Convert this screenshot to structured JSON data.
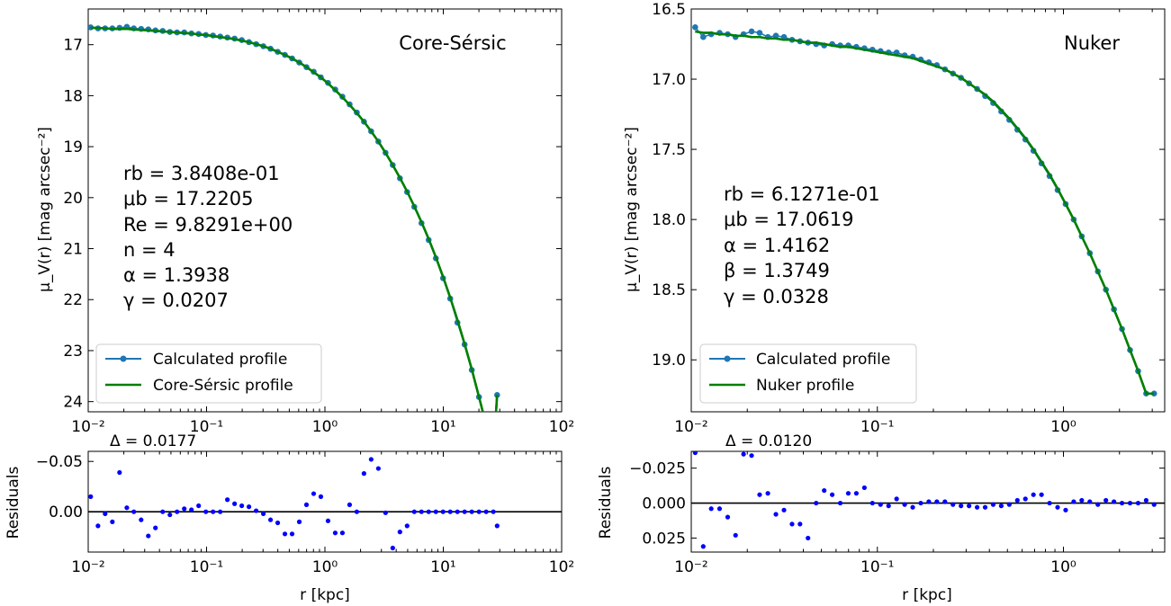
{
  "colors": {
    "calc": "#1f77b4",
    "fit": "#008000",
    "resid": "#0000ff",
    "zero": "#000000"
  },
  "chart_data": [
    {
      "type": "line",
      "title": "Core-Sérsic",
      "ylabel": "μ_V(r) [mag arcsec⁻²]",
      "xlabel": "",
      "xscale": "log",
      "xlim": [
        0.01,
        100
      ],
      "ylim": [
        24.2,
        16.3
      ],
      "y_inverted": true,
      "xticks": [
        "10⁻²",
        "10⁻¹",
        "10⁰",
        "10¹",
        "10²"
      ],
      "yticks": [
        "17",
        "18",
        "19",
        "20",
        "21",
        "22",
        "23",
        "24"
      ],
      "annotations": [
        "rb = 3.8408e-01",
        "μb = 17.2205",
        "Re = 9.8291e+00",
        "n = 4",
        "α = 1.3938",
        "γ = 0.0207"
      ],
      "legend": {
        "position": "lower-left",
        "entries": [
          "Calculated profile",
          "Core-Sérsic profile"
        ]
      },
      "series": [
        {
          "name": "Calculated profile",
          "x": [
            0.0105,
            0.0121,
            0.0139,
            0.016,
            0.0184,
            0.0212,
            0.0243,
            0.028,
            0.0322,
            0.037,
            0.0426,
            0.049,
            0.0563,
            0.0648,
            0.0745,
            0.0857,
            0.0986,
            0.1134,
            0.1304,
            0.1499,
            0.1725,
            0.1983,
            0.2281,
            0.2624,
            0.3018,
            0.3471,
            0.3992,
            0.4591,
            0.528,
            0.6073,
            0.6984,
            0.8032,
            0.9238,
            1.0624,
            1.2219,
            1.4053,
            1.6162,
            1.8587,
            2.1377,
            2.4585,
            2.8275,
            3.2519,
            3.74,
            4.3013,
            4.9469,
            5.6894,
            6.5433,
            7.5254,
            8.655,
            9.9541,
            11.448,
            13.166,
            15.142,
            17.415,
            20.029,
            23.035,
            26.493,
            28.5
          ],
          "y": [
            16.66,
            16.68,
            16.68,
            16.68,
            16.67,
            16.65,
            16.68,
            16.69,
            16.7,
            16.72,
            16.73,
            16.75,
            16.76,
            16.76,
            16.78,
            16.79,
            16.81,
            16.82,
            16.84,
            16.86,
            16.88,
            16.91,
            16.95,
            16.99,
            17.03,
            17.08,
            17.14,
            17.2,
            17.27,
            17.35,
            17.44,
            17.53,
            17.64,
            17.75,
            17.88,
            18.02,
            18.17,
            18.33,
            18.51,
            18.7,
            18.9,
            19.12,
            19.36,
            19.62,
            19.89,
            20.18,
            20.5,
            20.83,
            21.19,
            21.58,
            21.98,
            22.45,
            22.88,
            23.38,
            23.91,
            24.45,
            25.01,
            23.87
          ]
        },
        {
          "name": "Core-Sérsic profile",
          "x": [
            0.0105,
            0.0121,
            0.0139,
            0.016,
            0.0184,
            0.0212,
            0.0243,
            0.028,
            0.0322,
            0.037,
            0.0426,
            0.049,
            0.0563,
            0.0648,
            0.0745,
            0.0857,
            0.0986,
            0.1134,
            0.1304,
            0.1499,
            0.1725,
            0.1983,
            0.2281,
            0.2624,
            0.3018,
            0.3471,
            0.3992,
            0.4591,
            0.528,
            0.6073,
            0.6984,
            0.8032,
            0.9238,
            1.0624,
            1.2219,
            1.4053,
            1.6162,
            1.8587,
            2.1377,
            2.4585,
            2.8275,
            3.2519,
            3.74,
            4.3013,
            4.9469,
            5.6894,
            6.5433,
            7.5254,
            8.655,
            9.9541,
            11.448,
            13.166,
            15.142,
            17.415,
            20.029,
            23.035,
            26.493,
            28.5
          ],
          "y": [
            16.67,
            16.67,
            16.68,
            16.69,
            16.69,
            16.69,
            16.7,
            16.71,
            16.72,
            16.73,
            16.74,
            16.75,
            16.76,
            16.77,
            16.78,
            16.8,
            16.81,
            16.83,
            16.85,
            16.87,
            16.89,
            16.92,
            16.95,
            16.99,
            17.03,
            17.08,
            17.14,
            17.2,
            17.27,
            17.35,
            17.44,
            17.54,
            17.64,
            17.76,
            17.89,
            18.03,
            18.18,
            18.34,
            18.51,
            18.7,
            18.9,
            19.12,
            19.36,
            19.61,
            19.88,
            20.17,
            20.48,
            20.81,
            21.17,
            21.55,
            21.96,
            22.4,
            22.87,
            23.37,
            23.91,
            24.46,
            25.04,
            23.87
          ]
        }
      ]
    },
    {
      "type": "scatter",
      "title": "",
      "ylabel": "Residuals",
      "xlabel": "r [kpc]",
      "xscale": "log",
      "xlim": [
        0.01,
        100
      ],
      "ylim": [
        0.04,
        -0.06
      ],
      "y_inverted": true,
      "xticks": [
        "10⁻²",
        "10⁻¹",
        "10⁰",
        "10¹",
        "10²"
      ],
      "yticks": [
        "−0.05",
        "0.00"
      ],
      "annotations": [
        "Δ = 0.0177"
      ],
      "series": [
        {
          "name": "",
          "x": [
            0.0105,
            0.0121,
            0.0139,
            0.016,
            0.0184,
            0.0212,
            0.0243,
            0.028,
            0.0322,
            0.037,
            0.0426,
            0.049,
            0.0563,
            0.0648,
            0.0745,
            0.0857,
            0.0986,
            0.1134,
            0.1304,
            0.1499,
            0.1725,
            0.1983,
            0.2281,
            0.2624,
            0.3018,
            0.3471,
            0.3992,
            0.4591,
            0.528,
            0.6073,
            0.6984,
            0.8032,
            0.9238,
            1.0624,
            1.2219,
            1.4053,
            1.6162,
            1.8587,
            2.1377,
            2.4585,
            2.8275,
            3.2519,
            3.74,
            4.3013,
            4.9469,
            5.6894,
            6.5433,
            7.5254,
            8.655,
            9.9541,
            11.448,
            13.166,
            15.142,
            17.415,
            20.029,
            23.035,
            26.493,
            28.5
          ],
          "y": [
            -0.015,
            0.014,
            0.002,
            0.01,
            -0.039,
            -0.004,
            0.0,
            0.008,
            0.024,
            0.016,
            0.0,
            0.003,
            0.0,
            -0.003,
            -0.002,
            -0.006,
            0.0,
            0.0,
            0.0,
            -0.012,
            -0.008,
            -0.006,
            -0.005,
            -0.001,
            0.002,
            0.008,
            0.011,
            0.022,
            0.022,
            0.01,
            -0.007,
            -0.018,
            -0.015,
            0.009,
            0.021,
            0.021,
            -0.007,
            0.0,
            -0.038,
            -0.052,
            -0.043,
            0.001,
            0.036,
            0.02,
            0.014,
            0.0,
            0.0,
            0.0,
            0.0,
            0.0,
            0.0,
            0.0,
            0.0,
            0.0,
            0.0,
            0.0,
            0.0,
            0.014
          ]
        }
      ]
    },
    {
      "type": "line",
      "title": "Nuker",
      "ylabel": "μ_V(r) [mag arcsec⁻²]",
      "xlabel": "",
      "xscale": "log",
      "xlim": [
        0.01,
        3.5
      ],
      "ylim": [
        19.37,
        16.5
      ],
      "y_inverted": true,
      "xticks": [
        "10⁻²",
        "10⁻¹",
        "10⁰"
      ],
      "yticks": [
        "16.5",
        "17.0",
        "17.5",
        "18.0",
        "18.5",
        "19.0"
      ],
      "annotations": [
        "rb = 6.1271e-01",
        "μb = 17.0619",
        "α = 1.4162",
        "β = 1.3749",
        "γ = 0.0328"
      ],
      "legend": {
        "position": "lower-left",
        "entries": [
          "Calculated profile",
          "Nuker profile"
        ]
      },
      "series": [
        {
          "name": "Calculated profile",
          "x": [
            0.0105,
            0.0116,
            0.0128,
            0.0142,
            0.0157,
            0.0173,
            0.0191,
            0.0211,
            0.0233,
            0.0258,
            0.0285,
            0.0315,
            0.0348,
            0.0384,
            0.0424,
            0.0469,
            0.0518,
            0.0572,
            0.0632,
            0.0698,
            0.0771,
            0.0852,
            0.0941,
            0.104,
            0.1149,
            0.1269,
            0.1402,
            0.1549,
            0.1711,
            0.189,
            0.2088,
            0.2307,
            0.2548,
            0.2815,
            0.311,
            0.3436,
            0.3795,
            0.4193,
            0.4632,
            0.5117,
            0.5653,
            0.6245,
            0.6899,
            0.7622,
            0.842,
            0.9302,
            1.0277,
            1.1353,
            1.2542,
            1.3856,
            1.5307,
            1.6911,
            1.8682,
            2.0639,
            2.2801,
            2.5189,
            2.7828,
            3.07
          ],
          "y": [
            16.63,
            16.7,
            16.68,
            16.67,
            16.68,
            16.7,
            16.68,
            16.66,
            16.67,
            16.7,
            16.69,
            16.7,
            16.72,
            16.73,
            16.74,
            16.75,
            16.76,
            16.75,
            16.76,
            16.76,
            16.77,
            16.78,
            16.79,
            16.8,
            16.81,
            16.81,
            16.83,
            16.84,
            16.86,
            16.88,
            16.9,
            16.93,
            16.96,
            16.99,
            17.03,
            17.07,
            17.12,
            17.17,
            17.23,
            17.29,
            17.36,
            17.43,
            17.51,
            17.6,
            17.69,
            17.79,
            17.89,
            18.0,
            18.12,
            18.24,
            18.37,
            18.5,
            18.64,
            18.78,
            18.93,
            19.08,
            19.24,
            19.24
          ]
        },
        {
          "name": "Nuker profile",
          "x": [
            0.0105,
            0.0116,
            0.0128,
            0.0142,
            0.0157,
            0.0173,
            0.0191,
            0.0211,
            0.0233,
            0.0258,
            0.0285,
            0.0315,
            0.0348,
            0.0384,
            0.0424,
            0.0469,
            0.0518,
            0.0572,
            0.0632,
            0.0698,
            0.0771,
            0.0852,
            0.0941,
            0.104,
            0.1149,
            0.1269,
            0.1402,
            0.1549,
            0.1711,
            0.189,
            0.2088,
            0.2307,
            0.2548,
            0.2815,
            0.311,
            0.3436,
            0.3795,
            0.4193,
            0.4632,
            0.5117,
            0.5653,
            0.6245,
            0.6899,
            0.7622,
            0.842,
            0.9302,
            1.0277,
            1.1353,
            1.2542,
            1.3856,
            1.5307,
            1.6911,
            1.8682,
            2.0639,
            2.2801,
            2.5189,
            2.7828,
            3.07
          ],
          "y": [
            16.66,
            16.67,
            16.67,
            16.68,
            16.68,
            16.69,
            16.69,
            16.7,
            16.7,
            16.71,
            16.71,
            16.72,
            16.72,
            16.73,
            16.74,
            16.74,
            16.75,
            16.76,
            16.77,
            16.77,
            16.78,
            16.79,
            16.8,
            16.81,
            16.82,
            16.83,
            16.84,
            16.85,
            16.87,
            16.89,
            16.91,
            16.93,
            16.96,
            16.99,
            17.03,
            17.07,
            17.11,
            17.16,
            17.22,
            17.28,
            17.35,
            17.42,
            17.5,
            17.59,
            17.68,
            17.78,
            17.89,
            18.0,
            18.12,
            18.24,
            18.37,
            18.5,
            18.64,
            18.78,
            18.93,
            19.08,
            19.24,
            19.24
          ]
        }
      ]
    },
    {
      "type": "scatter",
      "title": "",
      "ylabel": "Residuals",
      "xlabel": "r [kpc]",
      "xscale": "log",
      "xlim": [
        0.01,
        3.5
      ],
      "ylim": [
        0.035,
        -0.037
      ],
      "y_inverted": true,
      "xticks": [
        "10⁻²",
        "10⁻¹",
        "10⁰"
      ],
      "yticks": [
        "−0.025",
        "0.000",
        "0.025"
      ],
      "annotations": [
        "Δ = 0.0120"
      ],
      "series": [
        {
          "name": "",
          "x": [
            0.0105,
            0.0116,
            0.0128,
            0.0142,
            0.0157,
            0.0173,
            0.0191,
            0.0211,
            0.0233,
            0.0258,
            0.0285,
            0.0315,
            0.0348,
            0.0384,
            0.0424,
            0.0469,
            0.0518,
            0.0572,
            0.0632,
            0.0698,
            0.0771,
            0.0852,
            0.0941,
            0.104,
            0.1149,
            0.1269,
            0.1402,
            0.1549,
            0.1711,
            0.189,
            0.2088,
            0.2307,
            0.2548,
            0.2815,
            0.311,
            0.3436,
            0.3795,
            0.4193,
            0.4632,
            0.5117,
            0.5653,
            0.6245,
            0.6899,
            0.7622,
            0.842,
            0.9302,
            1.0277,
            1.1353,
            1.2542,
            1.3856,
            1.5307,
            1.6911,
            1.8682,
            2.0639,
            2.2801,
            2.5189,
            2.7828,
            3.07
          ],
          "y": [
            -0.036,
            0.031,
            0.004,
            0.004,
            0.01,
            0.023,
            -0.035,
            -0.034,
            -0.006,
            -0.007,
            0.008,
            0.005,
            0.015,
            0.015,
            0.025,
            0.0,
            -0.009,
            -0.006,
            0.0,
            -0.007,
            -0.007,
            -0.011,
            0.0,
            0.001,
            0.002,
            -0.003,
            0.001,
            0.003,
            0.0,
            -0.001,
            -0.001,
            -0.001,
            0.001,
            0.002,
            0.002,
            0.003,
            0.003,
            0.001,
            0.002,
            0.001,
            -0.002,
            -0.003,
            -0.006,
            -0.006,
            0.0,
            0.003,
            0.005,
            -0.001,
            -0.002,
            -0.001,
            0.001,
            -0.002,
            -0.001,
            0.0,
            0.0,
            0.0,
            -0.002,
            0.001
          ]
        }
      ]
    }
  ]
}
